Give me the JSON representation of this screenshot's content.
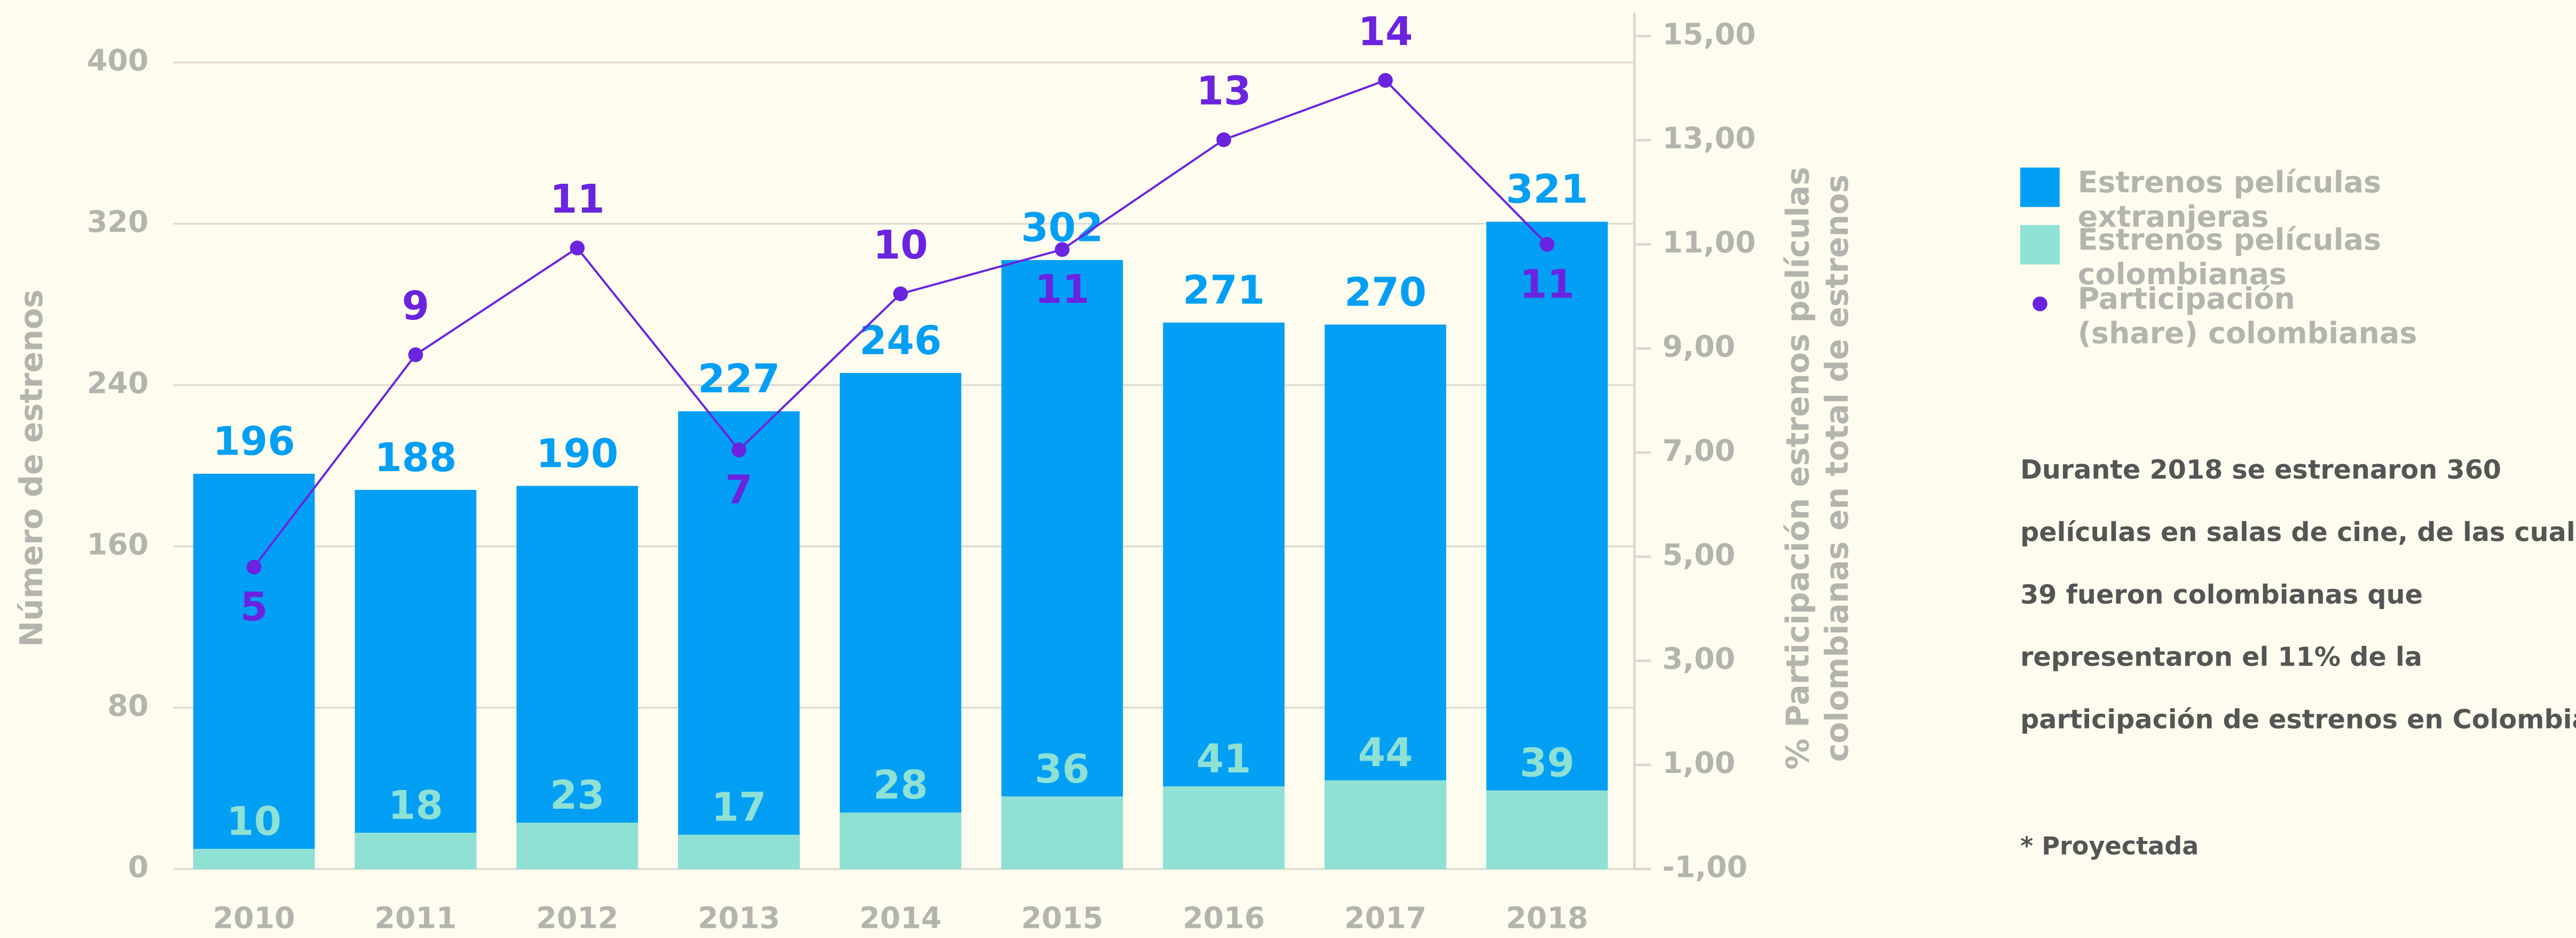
{
  "chart_data": {
    "type": "bar-line",
    "categories": [
      "2010",
      "2011",
      "2012",
      "2013",
      "2014",
      "2015",
      "2016",
      "2017",
      "2018"
    ],
    "ylabel": "Número de estrenos",
    "y2label": "% Participación estrenos películas colombianas en total de estrenos",
    "ylim": [
      0,
      400
    ],
    "yticks": [
      0,
      80,
      160,
      240,
      320,
      400
    ],
    "y2lim": [
      -1,
      15
    ],
    "y2ticks": [
      {
        "value": -1,
        "label": "-1,00"
      },
      {
        "value": 1,
        "label": "1,00"
      },
      {
        "value": 3,
        "label": "3,00"
      },
      {
        "value": 5,
        "label": "5,00"
      },
      {
        "value": 7,
        "label": "7,00"
      },
      {
        "value": 9,
        "label": "9,00"
      },
      {
        "value": 11,
        "label": "11,00"
      },
      {
        "value": 13,
        "label": "13,00"
      },
      {
        "value": 15,
        "label": "15,00"
      }
    ],
    "grid": true,
    "series": [
      {
        "name": "Estrenos películas extranjeras",
        "color": "#039ff5",
        "values": [
          196,
          188,
          190,
          227,
          246,
          302,
          271,
          270,
          321
        ]
      },
      {
        "name": "Estrenos películas colombianas",
        "color": "#8fe1d4",
        "values": [
          10,
          18,
          23,
          17,
          28,
          36,
          41,
          44,
          39
        ]
      },
      {
        "name": "Participación (share) colombianas",
        "color": "#6a24e0",
        "axis": "y2",
        "values": [
          4.8,
          8.88,
          10.93,
          7.05,
          10.05,
          10.9,
          13.01,
          14.15,
          11.0
        ],
        "value_labels": [
          "5",
          "9",
          "11",
          "7",
          "10",
          "11",
          "13",
          "14",
          "11"
        ]
      }
    ],
    "note": [
      "Durante 2018 se estrenaron 360",
      "películas en salas de cine, de las cuales",
      "39 fueron colombianas que",
      "representaron el 11% de la",
      "participación de estrenos en Colombia."
    ],
    "footnote": "* Proyectada"
  }
}
